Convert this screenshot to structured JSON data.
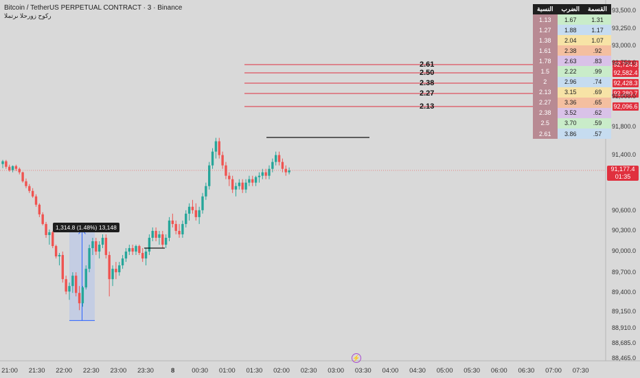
{
  "header": {
    "title": "Bitcoin / TetherUS PERPETUAL CONTRACT · 3 · Binance",
    "subtitle": "رکوح زورحلا ىرتملا"
  },
  "price_axis": {
    "ticks": [
      "93,500.0",
      "93,250.0",
      "93,000.0",
      "92,750.0",
      "92,000.0",
      "91,800.0",
      "91,400.0",
      "90,600.0",
      "90,300.0",
      "90,000.0",
      "89,700.0",
      "89,400.0",
      "89,150.0",
      "88,910.0",
      "88,685.0",
      "88,465.0"
    ],
    "last_price": "91,177.4",
    "countdown": "01:35"
  },
  "time_axis": {
    "ticks": [
      "21:00",
      "21:30",
      "22:00",
      "22:30",
      "23:00",
      "23:30",
      "8",
      "00:30",
      "01:00",
      "01:30",
      "02:00",
      "02:30",
      "03:00",
      "03:30",
      "04:00",
      "04:30",
      "05:00",
      "05:30",
      "06:00",
      "06:30",
      "07:00",
      "07:30"
    ]
  },
  "levels": [
    {
      "label": "2.61",
      "price": "92,724.3"
    },
    {
      "label": "2.50",
      "price": "92,582.4"
    },
    {
      "label": "2.38",
      "price": "92,428.3"
    },
    {
      "label": "2.27",
      "price": "92,280.7"
    },
    {
      "label": "2.13",
      "price": "92,096.6"
    }
  ],
  "table": {
    "headers": [
      "النسبة",
      "الضرب",
      "القسمة"
    ],
    "rows": [
      [
        "1.13",
        "1.67",
        "1.31"
      ],
      [
        "1.27",
        "1.88",
        "1.17"
      ],
      [
        "1.38",
        "2.04",
        "1.07"
      ],
      [
        "1.61",
        "2.38",
        ".92"
      ],
      [
        "1.78",
        "2.63",
        ".83"
      ],
      [
        "1.5",
        "2.22",
        ".99"
      ],
      [
        "2",
        "2.96",
        ".74"
      ],
      [
        "2.13",
        "3.15",
        ".69"
      ],
      [
        "2.27",
        "3.36",
        ".65"
      ],
      [
        "2.38",
        "3.52",
        ".62"
      ],
      [
        "2.5",
        "3.70",
        ".59"
      ],
      [
        "2.61",
        "3.86",
        ".57"
      ]
    ],
    "colors": {
      "ratio_bg": "#b88a93",
      "row_bgs": [
        "#c9ecc9",
        "#c6dcf0",
        "#f7e3a6",
        "#f4bfa0",
        "#d9c2e8",
        "#c9ecc9",
        "#c6dcf0",
        "#f7e3a6",
        "#f4bfa0",
        "#d9c2e8",
        "#c9ecc9",
        "#c6dcf0"
      ]
    }
  },
  "measure_tooltip": "1,314.8 (1.48%) 13,148",
  "colors": {
    "up": "#26a69a",
    "down": "#ef5350",
    "level_line": "#e0303e",
    "measure_fill": "#bcc8e6",
    "measure_line": "#2962ff"
  },
  "chart_data": {
    "type": "candlestick",
    "x_range": [
      "21:00",
      "07:30"
    ],
    "y_range": [
      88465,
      93500
    ],
    "last_price": 91177.4,
    "horizontal_levels": [
      92724.3,
      92582.4,
      92428.3,
      92280.7,
      92096.6
    ],
    "candles": [
      [
        91270,
        91330,
        91210,
        91310
      ],
      [
        91310,
        91330,
        91200,
        91230
      ],
      [
        91230,
        91260,
        91160,
        91180
      ],
      [
        91180,
        91250,
        91150,
        91240
      ],
      [
        91240,
        91260,
        91170,
        91200
      ],
      [
        91200,
        91220,
        91120,
        91150
      ],
      [
        91150,
        91160,
        91000,
        91020
      ],
      [
        91020,
        91060,
        90920,
        90950
      ],
      [
        90950,
        90980,
        90850,
        90880
      ],
      [
        90880,
        90920,
        90780,
        90800
      ],
      [
        90800,
        90830,
        90650,
        90680
      ],
      [
        90680,
        90700,
        90500,
        90540
      ],
      [
        90540,
        90570,
        90380,
        90400
      ],
      [
        90400,
        90430,
        90200,
        90240
      ],
      [
        90240,
        90320,
        90100,
        90280
      ],
      [
        90280,
        90300,
        90050,
        90080
      ],
      [
        90080,
        90100,
        89900,
        89930
      ],
      [
        89930,
        89980,
        89800,
        89950
      ],
      [
        89950,
        90000,
        89550,
        89600
      ],
      [
        89600,
        89650,
        89380,
        89420
      ],
      [
        89420,
        89550,
        89300,
        89500
      ],
      [
        89500,
        89700,
        89400,
        89650
      ],
      [
        89650,
        89700,
        89350,
        89400
      ],
      [
        89400,
        89500,
        89150,
        89250
      ],
      [
        89250,
        89500,
        89200,
        89480
      ],
      [
        89480,
        89800,
        89450,
        89750
      ],
      [
        89750,
        90100,
        89700,
        90050
      ],
      [
        90050,
        90200,
        89950,
        90150
      ],
      [
        90150,
        90200,
        89950,
        90000
      ],
      [
        90000,
        90150,
        89900,
        90100
      ],
      [
        90100,
        90250,
        90050,
        90200
      ],
      [
        90200,
        90250,
        89900,
        89950
      ],
      [
        89950,
        90000,
        89350,
        89600
      ],
      [
        89600,
        89800,
        89500,
        89750
      ],
      [
        89750,
        89850,
        89600,
        89700
      ],
      [
        89700,
        89850,
        89650,
        89800
      ],
      [
        89800,
        89950,
        89750,
        89900
      ],
      [
        89900,
        90050,
        89850,
        90000
      ],
      [
        90000,
        90100,
        89950,
        90050
      ],
      [
        90050,
        90100,
        89950,
        90000
      ],
      [
        90000,
        90100,
        89950,
        90080
      ],
      [
        90080,
        90100,
        89950,
        89980
      ],
      [
        89980,
        90050,
        89850,
        89900
      ],
      [
        89900,
        90050,
        89800,
        90000
      ],
      [
        90000,
        90250,
        89950,
        90200
      ],
      [
        90200,
        90350,
        90150,
        90300
      ],
      [
        90300,
        90350,
        90150,
        90200
      ],
      [
        90200,
        90300,
        90100,
        90250
      ],
      [
        90250,
        90300,
        90050,
        90100
      ],
      [
        90100,
        90250,
        90050,
        90200
      ],
      [
        90200,
        90500,
        90150,
        90450
      ],
      [
        90450,
        90550,
        90350,
        90400
      ],
      [
        90400,
        90450,
        90250,
        90300
      ],
      [
        90300,
        90400,
        90200,
        90250
      ],
      [
        90250,
        90450,
        90200,
        90400
      ],
      [
        90400,
        90600,
        90350,
        90550
      ],
      [
        90550,
        90700,
        90450,
        90650
      ],
      [
        90650,
        90750,
        90550,
        90600
      ],
      [
        90600,
        90700,
        90450,
        90500
      ],
      [
        90500,
        90650,
        90400,
        90600
      ],
      [
        90600,
        90850,
        90550,
        90800
      ],
      [
        90800,
        91000,
        90750,
        90950
      ],
      [
        90950,
        91300,
        90900,
        91250
      ],
      [
        91250,
        91500,
        91200,
        91450
      ],
      [
        91450,
        91650,
        91350,
        91600
      ],
      [
        91600,
        91650,
        91350,
        91400
      ],
      [
        91400,
        91450,
        91200,
        91250
      ],
      [
        91250,
        91300,
        91050,
        91100
      ],
      [
        91100,
        91150,
        90950,
        91050
      ],
      [
        91050,
        91100,
        90850,
        90900
      ],
      [
        90900,
        91000,
        90800,
        90950
      ],
      [
        90950,
        91050,
        90900,
        91000
      ],
      [
        91000,
        91050,
        90850,
        90900
      ],
      [
        90900,
        91050,
        90850,
        91000
      ],
      [
        91000,
        91100,
        90950,
        91050
      ],
      [
        91050,
        91100,
        90950,
        91000
      ],
      [
        91000,
        91100,
        90950,
        91080
      ],
      [
        91080,
        91150,
        91000,
        91100
      ],
      [
        91100,
        91200,
        91050,
        91150
      ],
      [
        91150,
        91200,
        91050,
        91100
      ],
      [
        91100,
        91250,
        91050,
        91200
      ],
      [
        91200,
        91350,
        91150,
        91300
      ],
      [
        91300,
        91450,
        91250,
        91400
      ],
      [
        91400,
        91450,
        91250,
        91300
      ],
      [
        91300,
        91350,
        91150,
        91200
      ],
      [
        91200,
        91250,
        91100,
        91150
      ],
      [
        91150,
        91220,
        91120,
        91177.4
      ]
    ]
  }
}
